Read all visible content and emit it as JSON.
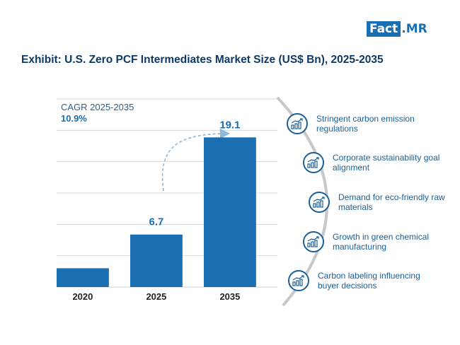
{
  "brand": {
    "left": "Fact",
    "right": ".MR"
  },
  "title": "Exhibit: U.S. Zero PCF Intermediates Market Size (US$ Bn), 2025-2035",
  "cagr": {
    "label": "CAGR 2025-2035",
    "value": "10.9%"
  },
  "chart_data": {
    "type": "bar",
    "title": "Exhibit: U.S. Zero PCF Intermediates Market Size (US$ Bn), 2025-2035",
    "categories": [
      "2020",
      "2025",
      "2035"
    ],
    "values": [
      2.4,
      6.7,
      19.1
    ],
    "data_labels": [
      "",
      "6.7",
      "19.1"
    ],
    "ylim": [
      0,
      24
    ],
    "grid": true,
    "bar_color": "#1a6fb3",
    "grid_color": "#d9d9d9"
  },
  "drivers": [
    {
      "icon": "growth-chart-icon",
      "text": "Stringent carbon emission regulations"
    },
    {
      "icon": "growth-chart-icon",
      "text": "Corporate sustainability goal alignment"
    },
    {
      "icon": "growth-chart-icon",
      "text": "Demand for eco-friendly raw materials"
    },
    {
      "icon": "growth-chart-icon",
      "text": "Growth in green chemical manufacturing"
    },
    {
      "icon": "growth-chart-icon",
      "text": "Carbon labeling influencing buyer decisions"
    }
  ],
  "colors": {
    "accent": "#1a6fb3",
    "title": "#0d3a66",
    "driver_text": "#1b5f97"
  }
}
